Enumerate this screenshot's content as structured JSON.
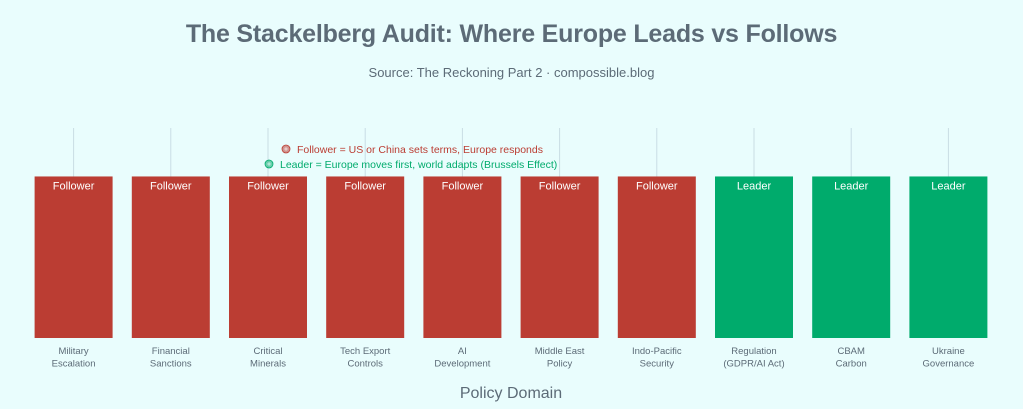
{
  "chart_data": {
    "type": "bar",
    "title": "The Stackelberg Audit: Where Europe Leads vs Follows",
    "subtitle": "Source: The Reckoning Part 2 · compossible.blog",
    "xlabel": "Policy Domain",
    "ylabel": "",
    "categories": [
      "Military Escalation",
      "Financial Sanctions",
      "Critical Minerals",
      "Tech Export Controls",
      "AI Development",
      "Middle East Policy",
      "Indo-Pacific Security",
      "Regulation (GDPR/AI Act)",
      "CBAM Carbon",
      "Ukraine Governance"
    ],
    "category_lines": [
      [
        "Military",
        "Escalation"
      ],
      [
        "Financial",
        "Sanctions"
      ],
      [
        "Critical",
        "Minerals"
      ],
      [
        "Tech Export",
        "Controls"
      ],
      [
        "AI",
        "Development"
      ],
      [
        "Middle East",
        "Policy"
      ],
      [
        "Indo-Pacific",
        "Security"
      ],
      [
        "Regulation",
        "(GDPR/AI Act)"
      ],
      [
        "CBAM",
        "Carbon"
      ],
      [
        "Ukraine",
        "Governance"
      ]
    ],
    "values": [
      1,
      1,
      1,
      1,
      1,
      1,
      1,
      1,
      1,
      1
    ],
    "ylim": [
      0,
      1.3
    ],
    "bar_labels": [
      "Follower",
      "Follower",
      "Follower",
      "Follower",
      "Follower",
      "Follower",
      "Follower",
      "Leader",
      "Leader",
      "Leader"
    ],
    "grid": "vertical",
    "legend_position": "top",
    "colors": {
      "Follower": "#bb3d33",
      "Leader": "#00ab6c",
      "background": "#e9fdfd",
      "gridline": "#c9dde4",
      "text": "#5c6b77"
    },
    "annotations": [
      {
        "icon": "red-circle-icon",
        "text": "Follower = US or China sets terms, Europe responds",
        "color": "#bb3d33"
      },
      {
        "icon": "green-circle-icon",
        "text": "Leader = Europe moves first, world adapts (Brussels Effect)",
        "color": "#00ab6c"
      }
    ]
  }
}
